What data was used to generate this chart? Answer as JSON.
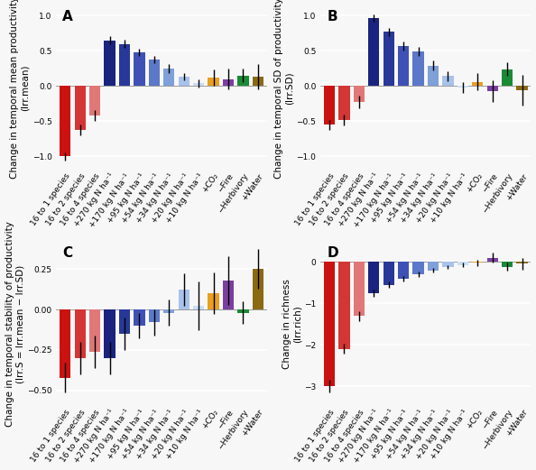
{
  "categories": [
    "16 to 1 species",
    "16 to 2 species",
    "16 to 4 species",
    "+270 kg N ha⁻¹",
    "+170 kg N ha⁻¹",
    "+95 kg N ha⁻¹",
    "+54 kg N ha⁻¹",
    "+34 kg N ha⁻¹",
    "+20 kg N ha⁻¹",
    "+10 kg N ha⁻¹",
    "+CO₂",
    "−Fire",
    "−Herbivory",
    "+Water"
  ],
  "colors": [
    "#cc1111",
    "#d43535",
    "#e07878",
    "#1a237e",
    "#283898",
    "#3f51b5",
    "#5c78c8",
    "#7fa0d8",
    "#a8c2ea",
    "#c8dff5",
    "#e8a020",
    "#7b3fa0",
    "#1a8a35",
    "#8b6a14"
  ],
  "panel_A": {
    "values": [
      -1.0,
      -0.62,
      -0.42,
      0.65,
      0.6,
      0.48,
      0.38,
      0.25,
      0.13,
      0.04,
      0.12,
      0.1,
      0.15,
      0.13
    ],
    "errors": [
      0.06,
      0.08,
      0.08,
      0.06,
      0.06,
      0.05,
      0.05,
      0.06,
      0.05,
      0.06,
      0.12,
      0.15,
      0.1,
      0.18
    ],
    "ylabel": "Change in temporal mean productivity\n(lrr.mean)",
    "ylim": [
      -1.2,
      1.15
    ],
    "yticks": [
      -1.0,
      -0.5,
      0.0,
      0.5,
      1.0
    ],
    "label": "A"
  },
  "panel_B": {
    "values": [
      -0.55,
      -0.48,
      -0.22,
      0.96,
      0.77,
      0.57,
      0.49,
      0.29,
      0.14,
      -0.02,
      0.06,
      -0.07,
      0.24,
      -0.06
    ],
    "errors": [
      0.07,
      0.08,
      0.09,
      0.05,
      0.06,
      0.06,
      0.06,
      0.07,
      0.07,
      0.08,
      0.12,
      0.15,
      0.1,
      0.22
    ],
    "ylabel": "Change in temporal SD of productivity\n(lrr.SD)",
    "ylim": [
      -1.2,
      1.15
    ],
    "yticks": [
      -1.0,
      -0.5,
      0.0,
      0.5,
      1.0
    ],
    "label": "B"
  },
  "panel_C": {
    "values": [
      -0.42,
      -0.3,
      -0.26,
      -0.3,
      -0.15,
      -0.1,
      -0.08,
      -0.02,
      0.12,
      0.02,
      0.1,
      0.18,
      -0.02,
      0.25
    ],
    "errors": [
      0.09,
      0.1,
      0.1,
      0.1,
      0.1,
      0.08,
      0.08,
      0.08,
      0.1,
      0.15,
      0.13,
      0.15,
      0.07,
      0.12
    ],
    "ylabel": "Change in temporal stability of productivity\n(lrr.S = lrr.mean − lrr.SD)",
    "ylim": [
      -0.6,
      0.42
    ],
    "yticks": [
      -0.5,
      -0.25,
      0.0,
      0.25
    ],
    "label": "C"
  },
  "panel_D": {
    "values": [
      -3.0,
      -2.1,
      -1.3,
      -0.75,
      -0.55,
      -0.4,
      -0.3,
      -0.2,
      -0.12,
      -0.07,
      -0.02,
      0.1,
      -0.12,
      -0.04
    ],
    "errors": [
      0.15,
      0.12,
      0.12,
      0.09,
      0.08,
      0.07,
      0.06,
      0.06,
      0.05,
      0.06,
      0.08,
      0.12,
      0.1,
      0.14
    ],
    "ylabel": "Change in richness\n(lrr.rich)",
    "ylim": [
      -3.5,
      0.5
    ],
    "yticks": [
      -3.0,
      -2.0,
      -1.0,
      0.0
    ],
    "label": "D"
  },
  "background_color": "#f7f7f7",
  "grid_color": "#ffffff",
  "tick_label_fontsize": 6.5,
  "axis_label_fontsize": 7.5,
  "panel_label_fontsize": 11
}
